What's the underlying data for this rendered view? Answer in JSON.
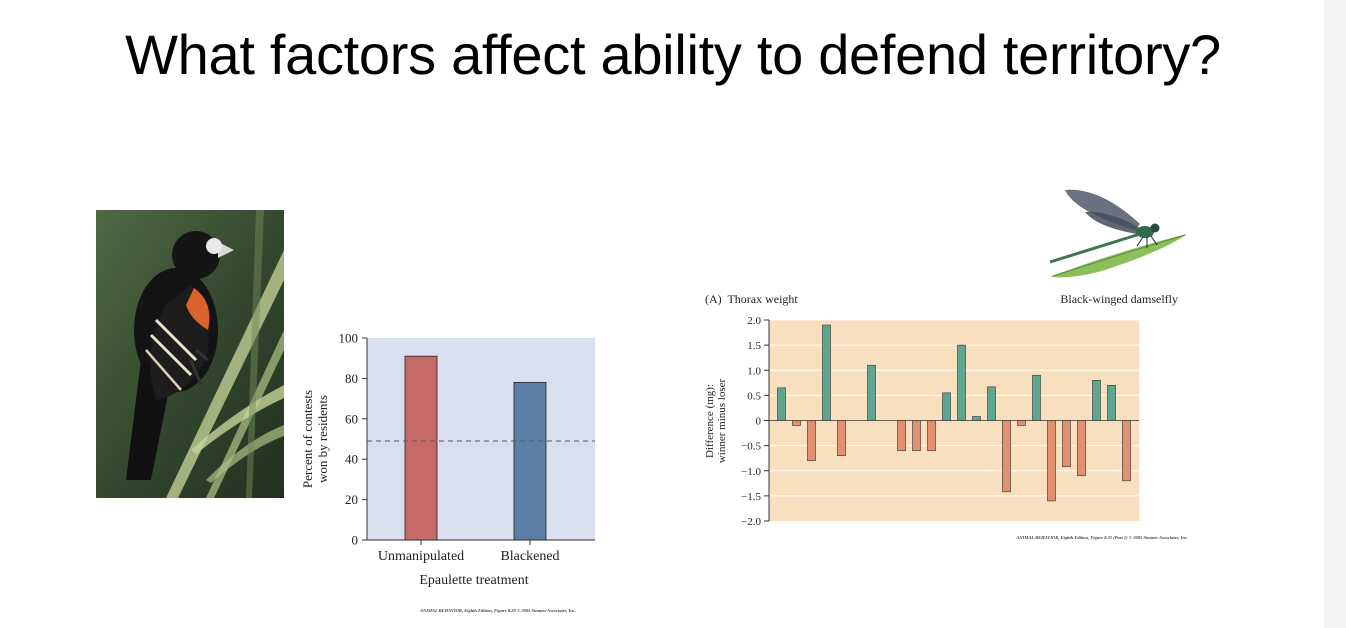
{
  "slide": {
    "title": "What factors affect ability to defend territory?"
  },
  "figures": {
    "bird_photo": {
      "subject": "red-shouldered-bird-on-reed"
    },
    "damselfly_drawing": {
      "subject": "black-winged-damselfly"
    },
    "bird_credit": "ANIMAL BEHAVIOR, Eighth Edition, Figure 8.39  © 2005 Sinauer Associates, Inc.",
    "fly_credit": "ANIMAL BEHAVIOR, Eighth Edition, Figure 8.31 (Part 1)  © 2005 Sinauer Associates, Inc."
  },
  "colors": {
    "bird_plot_bg": "#dadff0",
    "fly_plot_bg": "#f8dfbd",
    "bar_unmanipulated": "#c66a68",
    "bar_blackened": "#5a7ea5",
    "bar_positive": "#5fa692",
    "bar_negative": "#e29070"
  },
  "chart_data": [
    {
      "type": "bar",
      "title": "",
      "xlabel": "Epaulette treatment",
      "ylabel_line1": "Percent of contests",
      "ylabel_line2": "won by residents",
      "categories": [
        "Unmanipulated",
        "Blackened"
      ],
      "values": [
        91,
        78
      ],
      "ylim": [
        0,
        100
      ],
      "yticks": [
        0,
        20,
        40,
        60,
        80,
        100
      ],
      "ytick_labels": [
        "0",
        "20",
        "40",
        "60",
        "80",
        "100"
      ],
      "reference_line": 49,
      "grid": false
    },
    {
      "type": "bar",
      "panel_label": "(A)  Thorax weight",
      "title": "Black-winged damselfly",
      "ylabel_line1": "Difference (mg):",
      "ylabel_line2": "winner minus loser",
      "xlabel": "",
      "values": [
        0.65,
        -0.1,
        -0.8,
        1.9,
        -0.7,
        0,
        1.1,
        0,
        -0.6,
        -0.6,
        -0.6,
        0.55,
        1.5,
        0.08,
        0.67,
        -1.42,
        -0.1,
        0.9,
        -1.6,
        -0.92,
        -1.1,
        0.8,
        0.7,
        -1.2
      ],
      "ylim": [
        -2.0,
        2.0
      ],
      "yticks": [
        2.0,
        1.5,
        1.0,
        0.5,
        0,
        -0.5,
        -1.0,
        -1.5,
        -2.0
      ],
      "ytick_labels": [
        "2.0",
        "1.5",
        "1.0",
        "0.5",
        "0",
        "−0.5",
        "−1.0",
        "−1.5",
        "−2.0"
      ],
      "grid": true
    }
  ]
}
